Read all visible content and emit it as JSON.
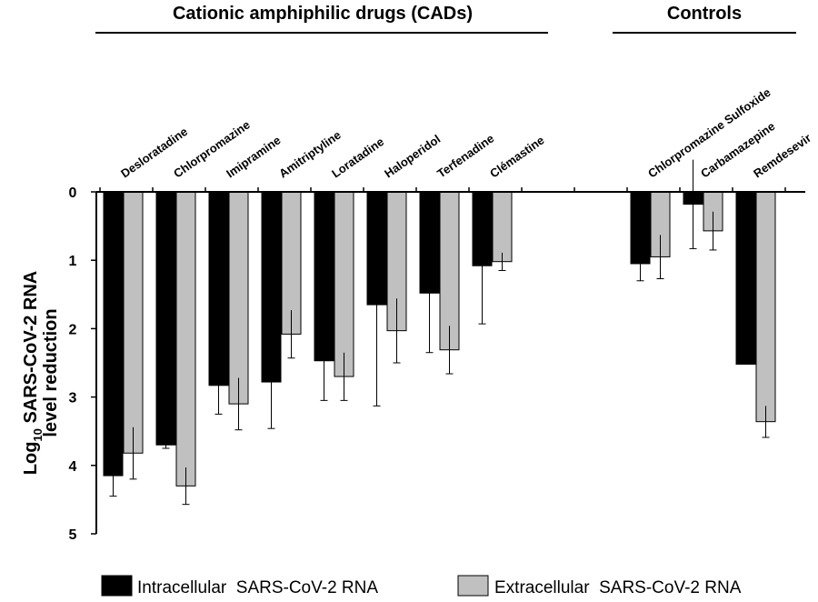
{
  "chart_data": {
    "type": "bar",
    "orientation": "vertical-downward",
    "groups": [
      {
        "title": "Cationic amphiphilic drugs (CADs)",
        "categories": [
          "Desloratadine",
          "Chlorpromazine",
          "Imipramine",
          "Amitriptyline",
          "Loratadine",
          "Haloperidol",
          "Terfenadine",
          "Clémastine"
        ]
      },
      {
        "title": "Controls",
        "categories": [
          "Chlorpromazine Sulfoxide",
          "Carbamazepine",
          "Remdesevir"
        ]
      }
    ],
    "categories": [
      "Desloratadine",
      "Chlorpromazine",
      "Imipramine",
      "Amitriptyline",
      "Loratadine",
      "Haloperidol",
      "Terfenadine",
      "Clémastine",
      "Chlorpromazine Sulfoxide",
      "Carbamazepine",
      "Remdesevir"
    ],
    "series": [
      {
        "name": "Intracellular  SARS-CoV-2 RNA",
        "color": "#000000",
        "values": [
          4.15,
          3.7,
          2.83,
          2.78,
          2.47,
          1.65,
          1.48,
          1.08,
          1.05,
          0.18,
          2.52
        ],
        "errors": [
          0.3,
          0.05,
          0.42,
          0.68,
          0.58,
          1.48,
          0.87,
          0.85,
          0.25,
          0.65,
          0.0
        ]
      },
      {
        "name": "Extracellular  SARS-CoV-2 RNA",
        "color": "#c0c0c0",
        "values": [
          3.82,
          4.3,
          3.1,
          2.08,
          2.7,
          2.03,
          2.31,
          1.02,
          0.95,
          0.57,
          3.36
        ],
        "errors": [
          0.38,
          0.27,
          0.38,
          0.35,
          0.35,
          0.47,
          0.35,
          0.13,
          0.32,
          0.28,
          0.23
        ]
      }
    ],
    "ylabel": "Log10 SARS-CoV-2 RNA level reduction",
    "ylabel_parts": {
      "base": "Log",
      "sub": "10",
      "line1_rest": " SARS-CoV-2 RNA",
      "line2": "level reduction"
    },
    "yticks": [
      "0",
      "1",
      "2",
      "3",
      "4",
      "5"
    ],
    "ylim": [
      0,
      5
    ],
    "legend_position": "bottom"
  }
}
